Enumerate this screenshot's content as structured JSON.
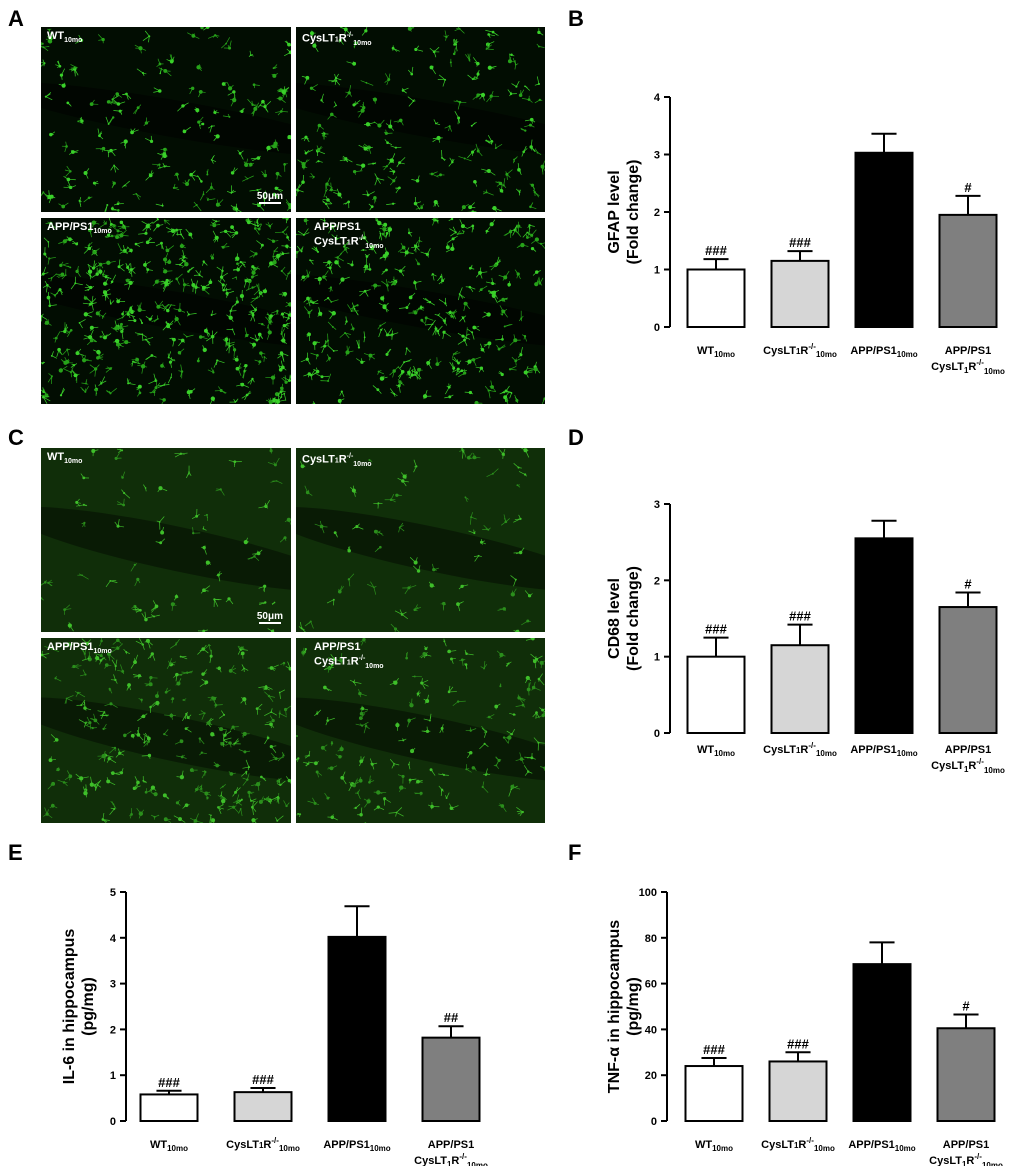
{
  "panels": {
    "A": "A",
    "B": "B",
    "C": "C",
    "D": "D",
    "E": "E",
    "F": "F"
  },
  "micrographs": {
    "A": {
      "tl": {
        "label": "WT",
        "sub": "10mo",
        "sup": ""
      },
      "tr": {
        "label": "CysLT",
        "sub": "10mo",
        "sup": "-/-"
      },
      "bl": {
        "label": "APP/PS1",
        "sub": "10mo",
        "sup": ""
      },
      "br": {
        "label": "APP/PS1",
        "label2": "CysLT",
        "sub": "10mo",
        "sup": "-/-"
      },
      "scale": "50μm"
    },
    "C": {
      "tl": {
        "label": "WT",
        "sub": "10mo",
        "sup": ""
      },
      "tr": {
        "label": "CysLT",
        "sub": "10mo",
        "sup": "-/-"
      },
      "bl": {
        "label": "APP/PS1",
        "sub": "10mo",
        "sup": ""
      },
      "br": {
        "label": "APP/PS1",
        "label2": "CysLT",
        "sub": "10mo",
        "sup": "-/-"
      },
      "scale": "50μm"
    }
  },
  "chart_data": [
    {
      "id": "B",
      "type": "bar",
      "ylabel": [
        "GFAP level",
        "(Fold change)"
      ],
      "categories": [
        "WT10mo",
        "CysLT1R-/-10mo",
        "APP/PS110mo",
        "APP/PS1 CysLT1R-/-10mo"
      ],
      "values": [
        1.0,
        1.15,
        3.03,
        1.95
      ],
      "errors": [
        0.18,
        0.17,
        0.33,
        0.33
      ],
      "annotations": [
        "###",
        "###",
        "",
        "#"
      ],
      "ylim": [
        0,
        4
      ],
      "yticks": [
        0,
        1,
        2,
        3,
        4
      ],
      "colors": [
        "#ffffff",
        "#d6d6d6",
        "#000000",
        "#7f7f7f"
      ]
    },
    {
      "id": "D",
      "type": "bar",
      "ylabel": [
        "CD68 level",
        "(Fold change)"
      ],
      "categories": [
        "WT10mo",
        "CysLT1R-/-10mo",
        "APP/PS110mo",
        "APP/PS1 CysLT1R-/-10mo"
      ],
      "values": [
        1.0,
        1.15,
        2.55,
        1.65
      ],
      "errors": [
        0.25,
        0.27,
        0.23,
        0.19
      ],
      "annotations": [
        "###",
        "###",
        "",
        "#"
      ],
      "ylim": [
        0,
        3
      ],
      "yticks": [
        0,
        1,
        2,
        3
      ],
      "colors": [
        "#ffffff",
        "#d6d6d6",
        "#000000",
        "#7f7f7f"
      ]
    },
    {
      "id": "E",
      "type": "bar",
      "ylabel": [
        "IL-6 in hippocampus",
        "(pg/mg)"
      ],
      "categories": [
        "WT10mo",
        "CysLT1R-/-10mo",
        "APP/PS110mo",
        "APP/PS1 CysLT1R-/-10mo"
      ],
      "values": [
        0.58,
        0.63,
        4.02,
        1.82
      ],
      "errors": [
        0.08,
        0.09,
        0.67,
        0.25
      ],
      "annotations": [
        "###",
        "###",
        "",
        "##"
      ],
      "ylim": [
        0,
        5
      ],
      "yticks": [
        0,
        1,
        2,
        3,
        4,
        5
      ],
      "colors": [
        "#ffffff",
        "#d6d6d6",
        "#000000",
        "#7f7f7f"
      ]
    },
    {
      "id": "F",
      "type": "bar",
      "ylabel": [
        "TNF-α in hippocampus",
        "(pg/mg)"
      ],
      "categories": [
        "WT10mo",
        "CysLT1R-/-10mo",
        "APP/PS110mo",
        "APP/PS1 CysLT1R-/-10mo"
      ],
      "values": [
        24,
        26,
        68.5,
        40.5
      ],
      "errors": [
        3.5,
        4,
        9.5,
        6
      ],
      "annotations": [
        "###",
        "###",
        "",
        "#"
      ],
      "ylim": [
        0,
        100
      ],
      "yticks": [
        0,
        20,
        40,
        60,
        80,
        100
      ],
      "colors": [
        "#ffffff",
        "#d6d6d6",
        "#000000",
        "#7f7f7f"
      ]
    }
  ],
  "xlabels": {
    "wt": {
      "main": "WT",
      "sub": "10mo"
    },
    "ko": {
      "main": "CysLT",
      "mid": "1",
      "main2": "R",
      "sup": "-/-",
      "sub": "10mo"
    },
    "app": {
      "main": "APP/PS1",
      "sub": "10mo"
    },
    "appko1": "APP/PS1",
    "appko2": {
      "main": "CysLT",
      "mid": "1",
      "main2": "R",
      "sup": "-/-",
      "sub": "10mo"
    }
  }
}
